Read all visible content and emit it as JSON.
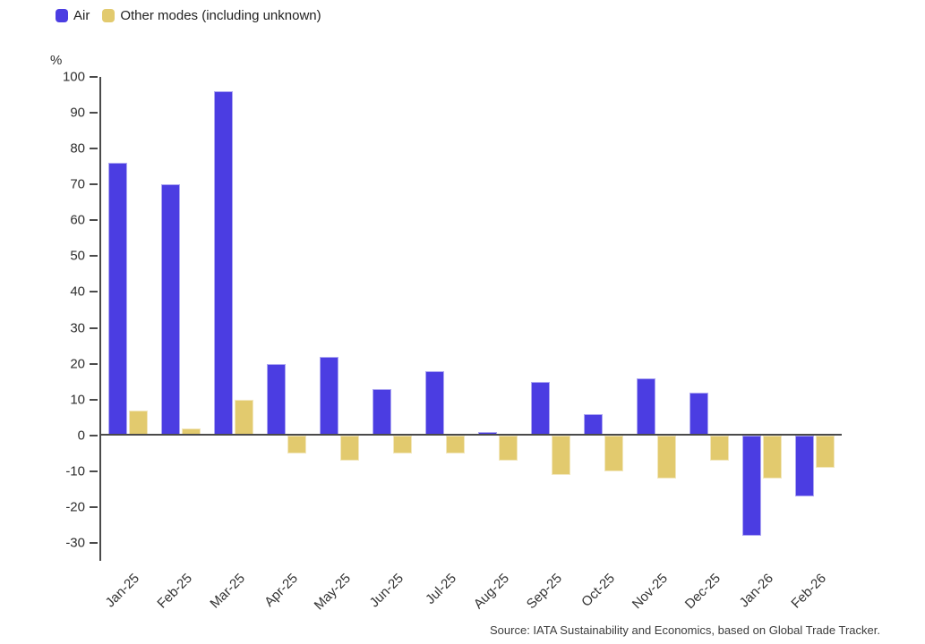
{
  "legend": {
    "items": [
      {
        "label": "Air",
        "color": "#4b3de2"
      },
      {
        "label": "Other modes (including unknown)",
        "color": "#e2ca6e"
      }
    ]
  },
  "y_axis": {
    "unit": "%",
    "ticks": [
      100,
      90,
      80,
      70,
      60,
      50,
      40,
      30,
      20,
      10,
      0,
      -10,
      -20,
      -30
    ]
  },
  "source": "Source: IATA Sustainability and Economics, based on Global Trade Tracker.",
  "chart_data": {
    "type": "bar",
    "title": "",
    "xlabel": "",
    "ylabel": "%",
    "ylim": [
      -35,
      100
    ],
    "grid": false,
    "legend_position": "top-left",
    "categories": [
      "Jan-25",
      "Feb-25",
      "Mar-25",
      "Apr-25",
      "May-25",
      "Jun-25",
      "Jul-25",
      "Aug-25",
      "Sep-25",
      "Oct-25",
      "Nov-25",
      "Dec-25",
      "Jan-26",
      "Feb-26"
    ],
    "series": [
      {
        "name": "Air",
        "color": "#4b3de2",
        "values": [
          76,
          70,
          96,
          20,
          22,
          13,
          18,
          1,
          15,
          6,
          16,
          12,
          -28,
          -17
        ]
      },
      {
        "name": "Other modes (including unknown)",
        "color": "#e2ca6e",
        "values": [
          7,
          2,
          10,
          -5,
          -7,
          -5,
          -5,
          -7,
          -11,
          -10,
          -12,
          -7,
          -12,
          -9
        ]
      }
    ]
  }
}
